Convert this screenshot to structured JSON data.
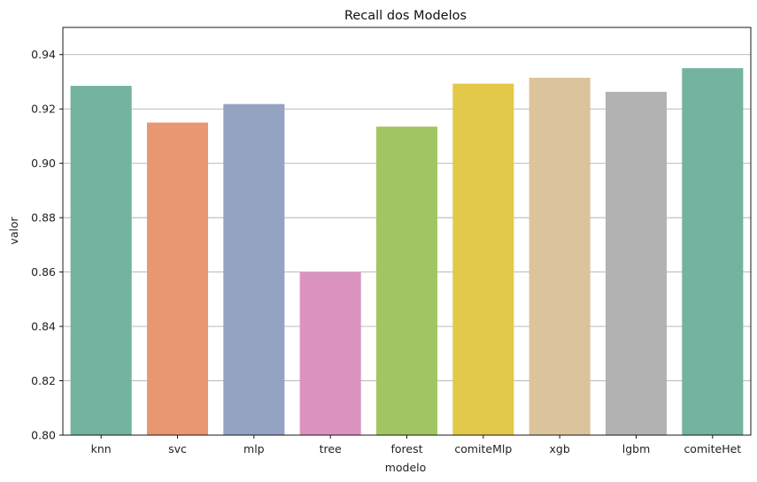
{
  "chart_data": {
    "type": "bar",
    "title": "Recall dos Modelos",
    "xlabel": "modelo",
    "ylabel": "valor",
    "categories": [
      "knn",
      "svc",
      "mlp",
      "tree",
      "forest",
      "comiteMlp",
      "xgb",
      "lgbm",
      "comiteHet"
    ],
    "values": [
      0.9285,
      0.915,
      0.9218,
      0.86,
      0.9135,
      0.9293,
      0.9315,
      0.9263,
      0.935
    ],
    "colors": [
      "#73b3a0",
      "#e99673",
      "#94a3c2",
      "#dc93bf",
      "#a2c563",
      "#e3c949",
      "#dbc39b",
      "#b2b2b2",
      "#73b3a0"
    ],
    "ylim": [
      0.8,
      0.95
    ],
    "yticks": [
      "0.80",
      "0.82",
      "0.84",
      "0.86",
      "0.88",
      "0.90",
      "0.92",
      "0.94"
    ],
    "grid": "y",
    "grid_color": "#b0b0b0"
  }
}
